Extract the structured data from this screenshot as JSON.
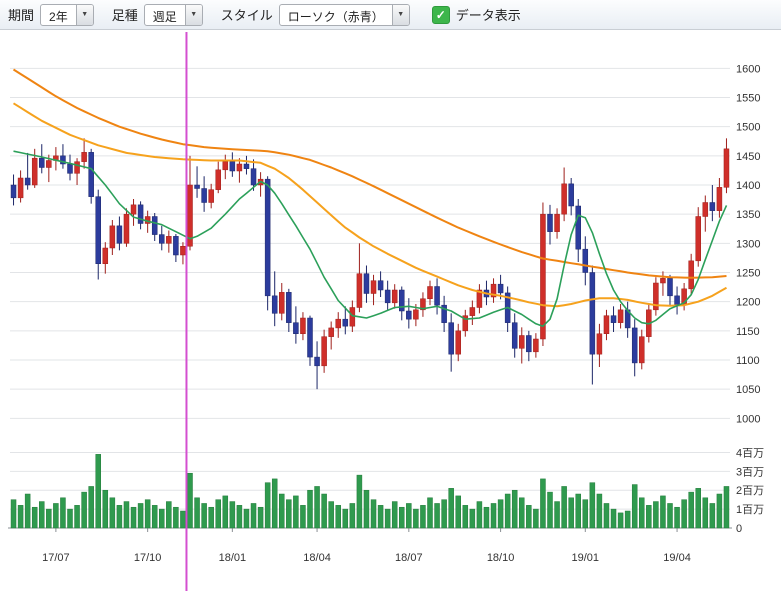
{
  "toolbar": {
    "period_label": "期間",
    "period_value": "2年",
    "bar_type_label": "足種",
    "bar_type_value": "週足",
    "style_label": "スタイル",
    "style_value": "ローソク（赤青）",
    "data_display_label": "データ表示",
    "data_display_checked": true
  },
  "chart_data": {
    "type": "candlestick_with_volume",
    "timeframe": "weekly",
    "x_labels": [
      {
        "index": 6,
        "label": "17/07"
      },
      {
        "index": 19,
        "label": "17/10"
      },
      {
        "index": 31,
        "label": "18/01"
      },
      {
        "index": 43,
        "label": "18/04"
      },
      {
        "index": 56,
        "label": "18/07"
      },
      {
        "index": 69,
        "label": "18/10"
      },
      {
        "index": 81,
        "label": "19/01"
      },
      {
        "index": 94,
        "label": "19/04"
      }
    ],
    "price_axis": {
      "ticks": [
        1600,
        1550,
        1500,
        1450,
        1400,
        1350,
        1300,
        1250,
        1200,
        1150,
        1100,
        1050,
        1000
      ],
      "min": 980,
      "max": 1640
    },
    "volume_axis": {
      "ticks": [
        {
          "value": 4,
          "label": "4百万"
        },
        {
          "value": 3,
          "label": "3百万"
        },
        {
          "value": 2,
          "label": "2百万"
        },
        {
          "value": 1,
          "label": "1百万"
        },
        {
          "value": 0,
          "label": "0"
        }
      ],
      "max_millions": 4.5
    },
    "candles": [
      [
        1400,
        1418,
        1365,
        1378
      ],
      [
        1378,
        1425,
        1370,
        1412
      ],
      [
        1412,
        1455,
        1392,
        1400
      ],
      [
        1400,
        1462,
        1395,
        1446
      ],
      [
        1446,
        1470,
        1420,
        1430
      ],
      [
        1430,
        1452,
        1405,
        1442
      ],
      [
        1442,
        1465,
        1425,
        1450
      ],
      [
        1450,
        1470,
        1428,
        1436
      ],
      [
        1436,
        1452,
        1408,
        1420
      ],
      [
        1420,
        1446,
        1400,
        1440
      ],
      [
        1440,
        1480,
        1428,
        1456
      ],
      [
        1456,
        1462,
        1368,
        1380
      ],
      [
        1380,
        1392,
        1238,
        1265
      ],
      [
        1265,
        1302,
        1248,
        1292
      ],
      [
        1292,
        1340,
        1280,
        1330
      ],
      [
        1330,
        1346,
        1288,
        1300
      ],
      [
        1300,
        1360,
        1294,
        1350
      ],
      [
        1350,
        1376,
        1330,
        1366
      ],
      [
        1366,
        1372,
        1324,
        1334
      ],
      [
        1334,
        1356,
        1318,
        1346
      ],
      [
        1346,
        1352,
        1304,
        1315
      ],
      [
        1315,
        1330,
        1288,
        1300
      ],
      [
        1300,
        1322,
        1284,
        1312
      ],
      [
        1312,
        1316,
        1268,
        1280
      ],
      [
        1280,
        1302,
        1264,
        1295
      ],
      [
        1295,
        1450,
        1288,
        1400
      ],
      [
        1400,
        1432,
        1378,
        1394
      ],
      [
        1394,
        1415,
        1354,
        1370
      ],
      [
        1370,
        1402,
        1360,
        1392
      ],
      [
        1392,
        1440,
        1386,
        1426
      ],
      [
        1426,
        1452,
        1410,
        1440
      ],
      [
        1440,
        1456,
        1414,
        1424
      ],
      [
        1424,
        1446,
        1404,
        1436
      ],
      [
        1436,
        1450,
        1418,
        1428
      ],
      [
        1428,
        1444,
        1390,
        1400
      ],
      [
        1400,
        1422,
        1380,
        1410
      ],
      [
        1410,
        1415,
        1185,
        1210
      ],
      [
        1210,
        1252,
        1158,
        1180
      ],
      [
        1180,
        1232,
        1168,
        1216
      ],
      [
        1216,
        1222,
        1148,
        1164
      ],
      [
        1164,
        1192,
        1128,
        1145
      ],
      [
        1145,
        1182,
        1134,
        1172
      ],
      [
        1172,
        1176,
        1090,
        1105
      ],
      [
        1105,
        1132,
        1050,
        1090
      ],
      [
        1090,
        1152,
        1078,
        1140
      ],
      [
        1140,
        1166,
        1118,
        1155
      ],
      [
        1155,
        1182,
        1138,
        1170
      ],
      [
        1170,
        1192,
        1144,
        1158
      ],
      [
        1158,
        1202,
        1148,
        1190
      ],
      [
        1190,
        1300,
        1182,
        1248
      ],
      [
        1248,
        1262,
        1198,
        1214
      ],
      [
        1214,
        1246,
        1194,
        1236
      ],
      [
        1236,
        1252,
        1208,
        1220
      ],
      [
        1220,
        1236,
        1184,
        1198
      ],
      [
        1198,
        1230,
        1188,
        1220
      ],
      [
        1220,
        1226,
        1168,
        1184
      ],
      [
        1184,
        1206,
        1154,
        1170
      ],
      [
        1170,
        1196,
        1158,
        1186
      ],
      [
        1186,
        1216,
        1174,
        1205
      ],
      [
        1205,
        1236,
        1194,
        1226
      ],
      [
        1226,
        1240,
        1178,
        1194
      ],
      [
        1194,
        1210,
        1148,
        1164
      ],
      [
        1164,
        1180,
        1080,
        1110
      ],
      [
        1110,
        1162,
        1098,
        1150
      ],
      [
        1150,
        1186,
        1140,
        1176
      ],
      [
        1176,
        1202,
        1160,
        1190
      ],
      [
        1190,
        1230,
        1180,
        1220
      ],
      [
        1220,
        1236,
        1194,
        1208
      ],
      [
        1208,
        1240,
        1198,
        1230
      ],
      [
        1230,
        1246,
        1204,
        1215
      ],
      [
        1215,
        1226,
        1148,
        1164
      ],
      [
        1164,
        1180,
        1104,
        1120
      ],
      [
        1120,
        1156,
        1094,
        1142
      ],
      [
        1142,
        1150,
        1098,
        1114
      ],
      [
        1114,
        1146,
        1104,
        1136
      ],
      [
        1136,
        1370,
        1124,
        1350
      ],
      [
        1350,
        1366,
        1298,
        1320
      ],
      [
        1320,
        1360,
        1308,
        1350
      ],
      [
        1350,
        1430,
        1338,
        1402
      ],
      [
        1402,
        1412,
        1348,
        1364
      ],
      [
        1364,
        1376,
        1268,
        1290
      ],
      [
        1290,
        1312,
        1228,
        1250
      ],
      [
        1250,
        1262,
        1058,
        1110
      ],
      [
        1110,
        1162,
        1088,
        1145
      ],
      [
        1145,
        1186,
        1134,
        1176
      ],
      [
        1176,
        1192,
        1148,
        1164
      ],
      [
        1164,
        1196,
        1154,
        1186
      ],
      [
        1186,
        1200,
        1138,
        1155
      ],
      [
        1155,
        1170,
        1072,
        1095
      ],
      [
        1095,
        1152,
        1084,
        1140
      ],
      [
        1140,
        1196,
        1130,
        1186
      ],
      [
        1186,
        1242,
        1176,
        1232
      ],
      [
        1232,
        1252,
        1210,
        1240
      ],
      [
        1240,
        1246,
        1194,
        1210
      ],
      [
        1210,
        1226,
        1178,
        1195
      ],
      [
        1195,
        1232,
        1185,
        1222
      ],
      [
        1222,
        1282,
        1212,
        1270
      ],
      [
        1270,
        1362,
        1260,
        1346
      ],
      [
        1346,
        1382,
        1320,
        1370
      ],
      [
        1370,
        1400,
        1338,
        1356
      ],
      [
        1356,
        1412,
        1344,
        1396
      ],
      [
        1396,
        1480,
        1386,
        1462
      ]
    ],
    "volumes_millions": [
      1.5,
      1.2,
      1.8,
      1.1,
      1.4,
      1.0,
      1.3,
      1.6,
      1.0,
      1.2,
      1.9,
      2.2,
      3.9,
      2.0,
      1.6,
      1.2,
      1.4,
      1.1,
      1.3,
      1.5,
      1.2,
      1.0,
      1.4,
      1.1,
      0.9,
      2.9,
      1.6,
      1.3,
      1.1,
      1.5,
      1.7,
      1.4,
      1.2,
      1.0,
      1.3,
      1.1,
      2.4,
      2.6,
      1.8,
      1.5,
      1.7,
      1.2,
      2.0,
      2.2,
      1.8,
      1.4,
      1.2,
      1.0,
      1.3,
      2.8,
      2.0,
      1.5,
      1.2,
      1.0,
      1.4,
      1.1,
      1.3,
      1.0,
      1.2,
      1.6,
      1.3,
      1.5,
      2.1,
      1.7,
      1.2,
      1.0,
      1.4,
      1.1,
      1.3,
      1.5,
      1.8,
      2.0,
      1.6,
      1.2,
      1.0,
      2.6,
      1.9,
      1.4,
      2.2,
      1.6,
      1.8,
      1.5,
      2.4,
      1.8,
      1.3,
      1.0,
      0.8,
      0.9,
      2.3,
      1.6,
      1.2,
      1.4,
      1.7,
      1.3,
      1.1,
      1.5,
      1.9,
      2.1,
      1.6,
      1.3,
      1.8,
      2.2
    ],
    "moving_averages": [
      {
        "name": "ma-short-green",
        "color": "#2ca05a",
        "width": 1.6,
        "points": [
          [
            0,
            1458
          ],
          [
            4,
            1448
          ],
          [
            8,
            1437
          ],
          [
            11,
            1428
          ],
          [
            13,
            1400
          ],
          [
            15,
            1368
          ],
          [
            17,
            1345
          ],
          [
            19,
            1338
          ],
          [
            21,
            1332
          ],
          [
            23,
            1320
          ],
          [
            25,
            1308
          ],
          [
            26,
            1312
          ],
          [
            28,
            1326
          ],
          [
            30,
            1350
          ],
          [
            32,
            1376
          ],
          [
            34,
            1396
          ],
          [
            35,
            1406
          ],
          [
            36,
            1400
          ],
          [
            37,
            1386
          ],
          [
            38,
            1368
          ],
          [
            40,
            1330
          ],
          [
            42,
            1290
          ],
          [
            44,
            1242
          ],
          [
            46,
            1202
          ],
          [
            48,
            1176
          ],
          [
            50,
            1172
          ],
          [
            52,
            1180
          ],
          [
            54,
            1190
          ],
          [
            56,
            1192
          ],
          [
            58,
            1188
          ],
          [
            60,
            1192
          ],
          [
            62,
            1184
          ],
          [
            64,
            1170
          ],
          [
            66,
            1172
          ],
          [
            68,
            1182
          ],
          [
            70,
            1190
          ],
          [
            72,
            1178
          ],
          [
            74,
            1162
          ],
          [
            75,
            1158
          ],
          [
            76,
            1170
          ],
          [
            77,
            1205
          ],
          [
            78,
            1262
          ],
          [
            79,
            1315
          ],
          [
            80,
            1348
          ],
          [
            81,
            1344
          ],
          [
            82,
            1318
          ],
          [
            83,
            1282
          ],
          [
            84,
            1248
          ],
          [
            85,
            1220
          ],
          [
            86,
            1200
          ],
          [
            87,
            1185
          ],
          [
            88,
            1172
          ],
          [
            89,
            1164
          ],
          [
            90,
            1162
          ],
          [
            91,
            1168
          ],
          [
            92,
            1178
          ],
          [
            93,
            1188
          ],
          [
            94,
            1193
          ],
          [
            95,
            1198
          ],
          [
            96,
            1212
          ],
          [
            97,
            1238
          ],
          [
            98,
            1272
          ],
          [
            99,
            1305
          ],
          [
            100,
            1338
          ],
          [
            101,
            1365
          ]
        ]
      },
      {
        "name": "ma-mid-orange",
        "color": "#f6a21d",
        "width": 2,
        "points": [
          [
            0,
            1540
          ],
          [
            4,
            1510
          ],
          [
            8,
            1486
          ],
          [
            12,
            1468
          ],
          [
            16,
            1455
          ],
          [
            20,
            1448
          ],
          [
            24,
            1444
          ],
          [
            28,
            1442
          ],
          [
            32,
            1442
          ],
          [
            35,
            1438
          ],
          [
            37,
            1428
          ],
          [
            39,
            1412
          ],
          [
            41,
            1392
          ],
          [
            43,
            1370
          ],
          [
            45,
            1348
          ],
          [
            47,
            1327
          ],
          [
            49,
            1310
          ],
          [
            51,
            1295
          ],
          [
            53,
            1282
          ],
          [
            55,
            1270
          ],
          [
            57,
            1258
          ],
          [
            59,
            1248
          ],
          [
            61,
            1238
          ],
          [
            63,
            1228
          ],
          [
            65,
            1220
          ],
          [
            67,
            1214
          ],
          [
            69,
            1210
          ],
          [
            71,
            1205
          ],
          [
            73,
            1199
          ],
          [
            75,
            1194
          ],
          [
            77,
            1192
          ],
          [
            79,
            1196
          ],
          [
            81,
            1202
          ],
          [
            83,
            1206
          ],
          [
            85,
            1206
          ],
          [
            87,
            1203
          ],
          [
            89,
            1198
          ],
          [
            91,
            1194
          ],
          [
            93,
            1193
          ],
          [
            95,
            1194
          ],
          [
            97,
            1200
          ],
          [
            99,
            1210
          ],
          [
            101,
            1224
          ]
        ]
      },
      {
        "name": "ma-long-orange",
        "color": "#ef8412",
        "width": 2,
        "points": [
          [
            0,
            1598
          ],
          [
            3,
            1575
          ],
          [
            6,
            1552
          ],
          [
            9,
            1532
          ],
          [
            12,
            1515
          ],
          [
            15,
            1500
          ],
          [
            18,
            1488
          ],
          [
            21,
            1478
          ],
          [
            24,
            1470
          ],
          [
            27,
            1465
          ],
          [
            30,
            1462
          ],
          [
            33,
            1460
          ],
          [
            36,
            1458
          ],
          [
            39,
            1452
          ],
          [
            42,
            1443
          ],
          [
            45,
            1430
          ],
          [
            48,
            1415
          ],
          [
            51,
            1398
          ],
          [
            54,
            1380
          ],
          [
            57,
            1362
          ],
          [
            60,
            1344
          ],
          [
            63,
            1327
          ],
          [
            66,
            1312
          ],
          [
            69,
            1298
          ],
          [
            72,
            1285
          ],
          [
            75,
            1274
          ],
          [
            78,
            1268
          ],
          [
            81,
            1262
          ],
          [
            84,
            1256
          ],
          [
            87,
            1250
          ],
          [
            90,
            1245
          ],
          [
            93,
            1242
          ],
          [
            96,
            1241
          ],
          [
            99,
            1242
          ],
          [
            101,
            1244
          ]
        ]
      }
    ],
    "crosshair": {
      "index": 24.5,
      "color": "#d44fd0"
    },
    "colors": {
      "up": "#cf2f2a",
      "up_stroke": "#9e1f1b",
      "down": "#2c3c9d",
      "down_stroke": "#1c2668",
      "volume": "#2f9a4e",
      "volume_stroke": "#227a3a",
      "grid": "#e2e4e7",
      "axis": "#8a8f94",
      "text": "#333333",
      "background": "#ffffff"
    }
  }
}
